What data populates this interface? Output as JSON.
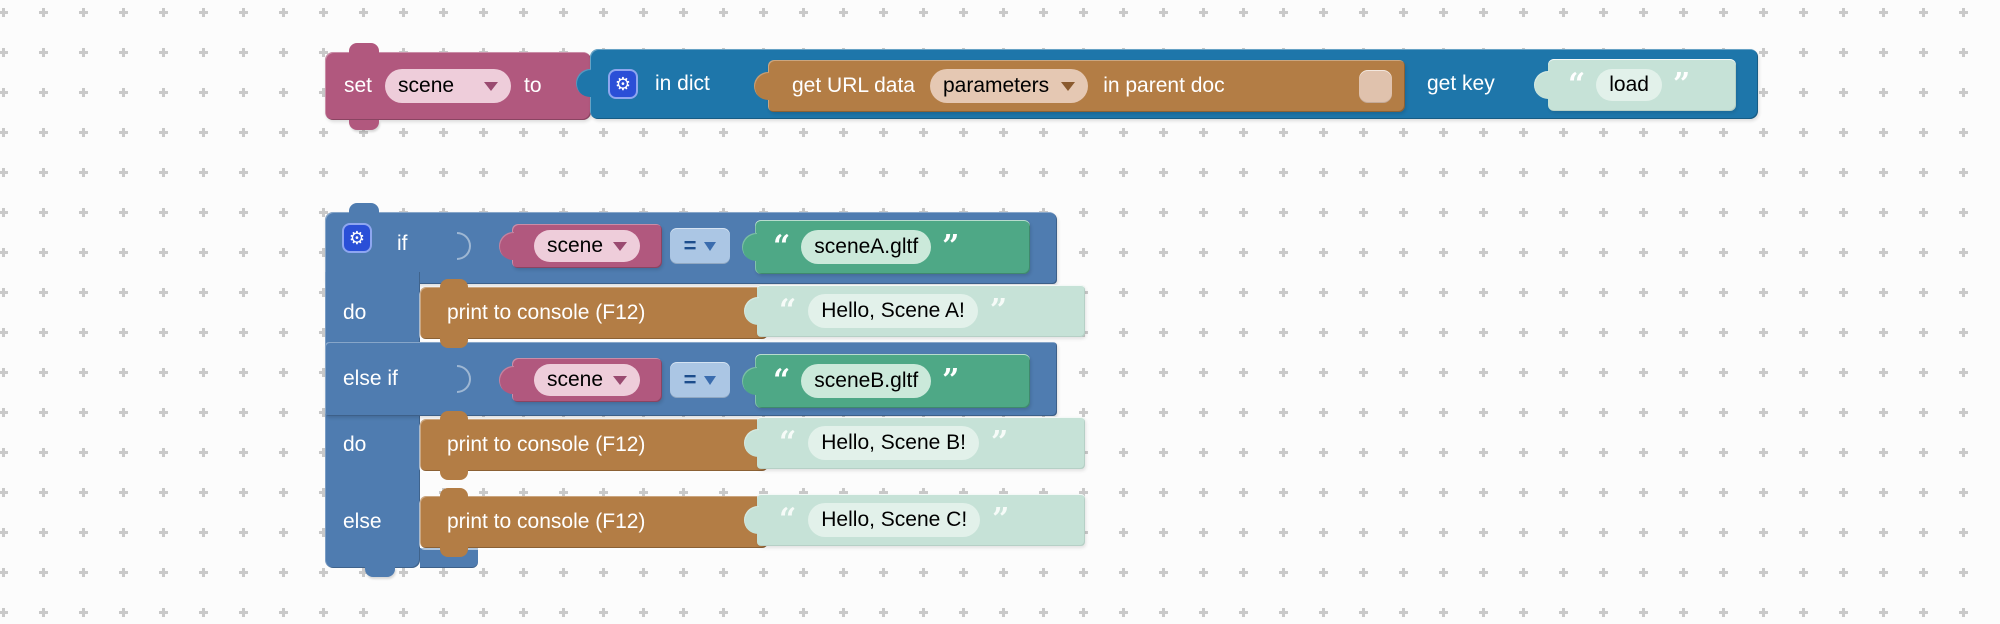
{
  "workspace": {
    "background": "#fcfcfc",
    "grid_color": "#c9c9c9"
  },
  "colors": {
    "variable": "#b1587e",
    "variable_field": "#eecdda",
    "variable_arrow": "#9a4a70",
    "dict_blue": "#1e76aa",
    "logic_blue": "#4f7cb0",
    "eq_chip": "#abc6e4",
    "eq_text": "#1c4d8c",
    "tan": "#b37d45",
    "tan_field": "#e5c8b3",
    "checkbox": "#e0c2ad",
    "green": "#4ea886",
    "green_field": "#cbe9da",
    "mint": "#c6e2d7",
    "mint_field": "#e2f1ea",
    "gear_chip": "#2a4fd7"
  },
  "icons": {
    "mutator_gear": "⚙"
  },
  "set_block": {
    "set": "set",
    "variable": "scene",
    "to": "to"
  },
  "dict_block": {
    "in_dict": "in dict",
    "get_key": "get key"
  },
  "url_block": {
    "get_url_data": "get URL data",
    "parameters": "parameters",
    "in_parent_doc": "in parent doc"
  },
  "key_string": {
    "open": "“",
    "text": "load",
    "close": "”"
  },
  "if_block": {
    "if_label": "if",
    "do1_label": "do",
    "elseif_label": "else if",
    "do2_label": "do",
    "else_label": "else",
    "cond1": {
      "variable": "scene",
      "operator": "=",
      "open": "“",
      "text": "sceneA.gltf",
      "close": "”"
    },
    "cond2": {
      "variable": "scene",
      "operator": "=",
      "open": "“",
      "text": "sceneB.gltf",
      "close": "”"
    },
    "print1": {
      "label": "print to console (F12)",
      "open": "“",
      "text": "Hello, Scene A!",
      "close": "”"
    },
    "print2": {
      "label": "print to console (F12)",
      "open": "“",
      "text": "Hello, Scene B!",
      "close": "”"
    },
    "print3": {
      "label": "print to console (F12)",
      "open": "“",
      "text": "Hello, Scene C!",
      "close": "”"
    }
  }
}
